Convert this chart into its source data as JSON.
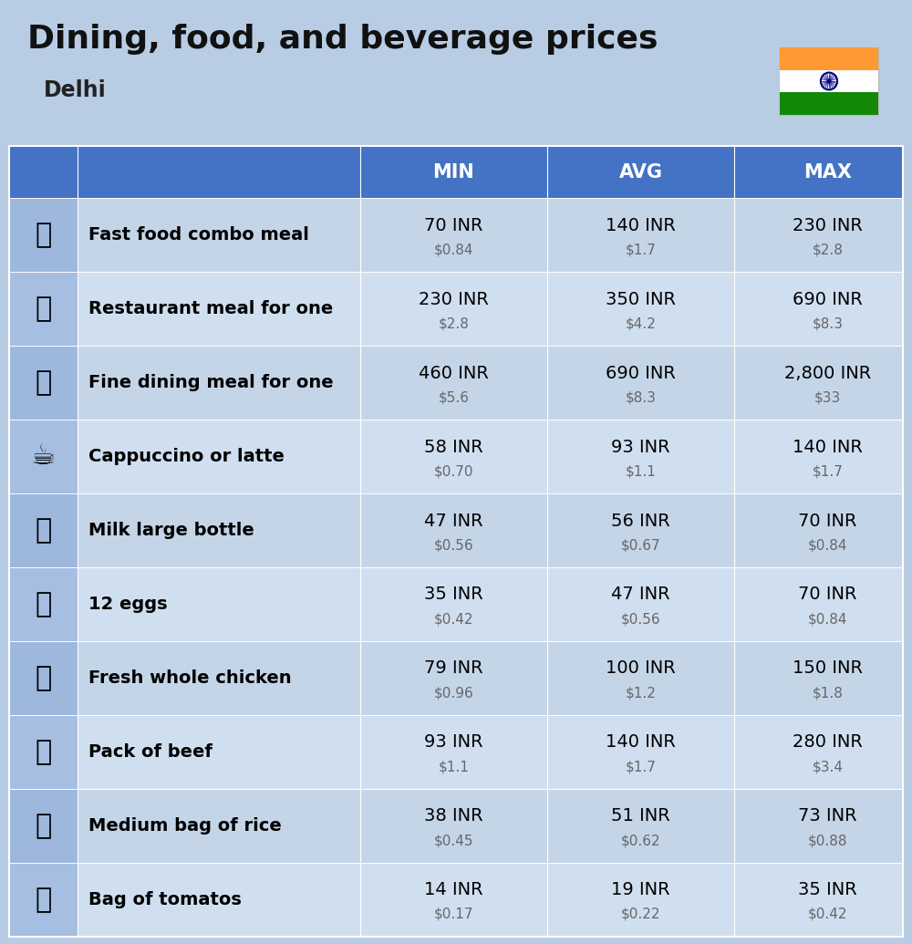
{
  "title": "Dining, food, and beverage prices",
  "subtitle": "Delhi",
  "bg_color": "#b8cce4",
  "header_bg": "#4472c4",
  "header_text_color": "#ffffff",
  "row_bg_odd": "#c5d5e8",
  "row_bg_even": "#d0dff0",
  "label_text_color": "#000000",
  "value_text_color": "#000000",
  "sub_value_color": "#666666",
  "col_headers": [
    "MIN",
    "AVG",
    "MAX"
  ],
  "rows": [
    {
      "label": "Fast food combo meal",
      "emoji": "🍔",
      "min_inr": "70 INR",
      "min_usd": "$0.84",
      "avg_inr": "140 INR",
      "avg_usd": "$1.7",
      "max_inr": "230 INR",
      "max_usd": "$2.8"
    },
    {
      "label": "Restaurant meal for one",
      "emoji": "🍳",
      "min_inr": "230 INR",
      "min_usd": "$2.8",
      "avg_inr": "350 INR",
      "avg_usd": "$4.2",
      "max_inr": "690 INR",
      "max_usd": "$8.3"
    },
    {
      "label": "Fine dining meal for one",
      "emoji": "🍽",
      "min_inr": "460 INR",
      "min_usd": "$5.6",
      "avg_inr": "690 INR",
      "avg_usd": "$8.3",
      "max_inr": "2,800 INR",
      "max_usd": "$33"
    },
    {
      "label": "Cappuccino or latte",
      "emoji": "☕",
      "min_inr": "58 INR",
      "min_usd": "$0.70",
      "avg_inr": "93 INR",
      "avg_usd": "$1.1",
      "max_inr": "140 INR",
      "max_usd": "$1.7"
    },
    {
      "label": "Milk large bottle",
      "emoji": "🥛",
      "min_inr": "47 INR",
      "min_usd": "$0.56",
      "avg_inr": "56 INR",
      "avg_usd": "$0.67",
      "max_inr": "70 INR",
      "max_usd": "$0.84"
    },
    {
      "label": "12 eggs",
      "emoji": "🥚",
      "min_inr": "35 INR",
      "min_usd": "$0.42",
      "avg_inr": "47 INR",
      "avg_usd": "$0.56",
      "max_inr": "70 INR",
      "max_usd": "$0.84"
    },
    {
      "label": "Fresh whole chicken",
      "emoji": "🐔",
      "min_inr": "79 INR",
      "min_usd": "$0.96",
      "avg_inr": "100 INR",
      "avg_usd": "$1.2",
      "max_inr": "150 INR",
      "max_usd": "$1.8"
    },
    {
      "label": "Pack of beef",
      "emoji": "🥩",
      "min_inr": "93 INR",
      "min_usd": "$1.1",
      "avg_inr": "140 INR",
      "avg_usd": "$1.7",
      "max_inr": "280 INR",
      "max_usd": "$3.4"
    },
    {
      "label": "Medium bag of rice",
      "emoji": "🍚",
      "min_inr": "38 INR",
      "min_usd": "$0.45",
      "avg_inr": "51 INR",
      "avg_usd": "$0.62",
      "max_inr": "73 INR",
      "max_usd": "$0.88"
    },
    {
      "label": "Bag of tomatos",
      "emoji": "🍅",
      "min_inr": "14 INR",
      "min_usd": "$0.17",
      "avg_inr": "19 INR",
      "avg_usd": "$0.22",
      "max_inr": "35 INR",
      "max_usd": "$0.42"
    }
  ]
}
